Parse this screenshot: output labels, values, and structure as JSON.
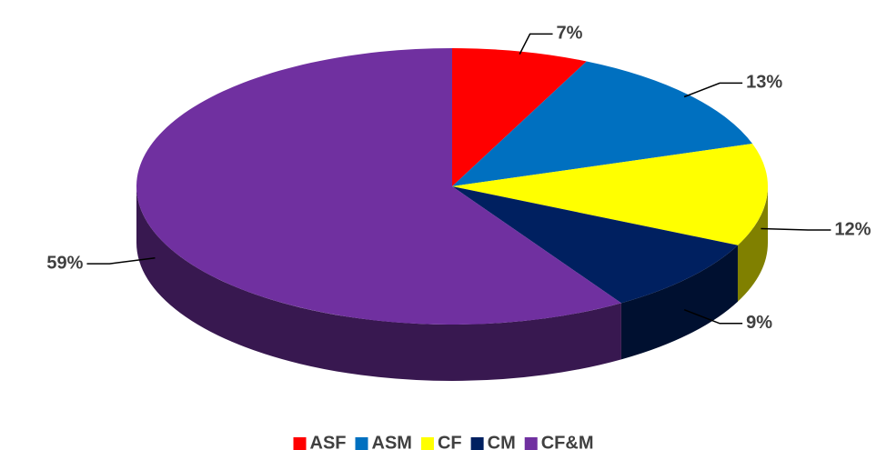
{
  "chart_data": {
    "type": "pie3d",
    "categories": [
      "ASF",
      "ASM",
      "CF",
      "CM",
      "CF&M"
    ],
    "values": [
      7,
      13,
      12,
      9,
      59
    ],
    "value_labels": [
      "7%",
      "13%",
      "12%",
      "9%",
      "59%"
    ],
    "colors": [
      "#ff0000",
      "#0070c0",
      "#ffff00",
      "#002060",
      "#7030a0"
    ],
    "legend": "bottom"
  }
}
